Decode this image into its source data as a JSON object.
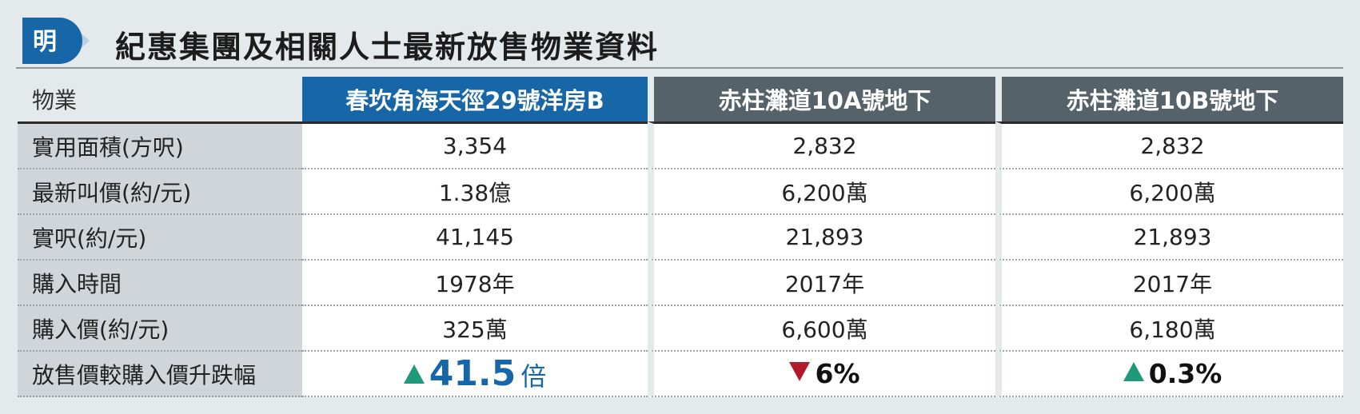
{
  "header": {
    "logo_char": "明",
    "title": "紀惠集團及相關人士最新放售物業資料"
  },
  "colors": {
    "highlight_header": "#1767a8",
    "grey_header": "#55626a",
    "up_arrow": "#1e9a7a",
    "down_arrow": "#b31b2c",
    "label_column": "#cfd5d9"
  },
  "table": {
    "corner_label": "物業",
    "columns": [
      "春坎角海天徑29號洋房B",
      "赤柱灘道10A號地下",
      "赤柱灘道10B號地下"
    ],
    "rows": [
      {
        "label": "實用面積(方呎)",
        "values": [
          "3,354",
          "2,832",
          "2,832"
        ]
      },
      {
        "label": "最新叫價(約/元)",
        "values": [
          "1.38億",
          "6,200萬",
          "6,200萬"
        ]
      },
      {
        "label": "實呎(約/元)",
        "values": [
          "41,145",
          "21,893",
          "21,893"
        ]
      },
      {
        "label": "購入時間",
        "values": [
          "1978年",
          "2017年",
          "2017年"
        ]
      },
      {
        "label": "購入價(約/元)",
        "values": [
          "325萬",
          "6,600萬",
          "6,180萬"
        ]
      }
    ],
    "change_row": {
      "label": "放售價較購入價升跌幅",
      "items": [
        {
          "direction": "up",
          "icon": "triangle-up-icon",
          "value": "41.5",
          "unit": "倍"
        },
        {
          "direction": "down",
          "icon": "triangle-down-icon",
          "value": "6%",
          "unit": ""
        },
        {
          "direction": "up",
          "icon": "triangle-up-icon",
          "value": "0.3%",
          "unit": ""
        }
      ]
    }
  }
}
